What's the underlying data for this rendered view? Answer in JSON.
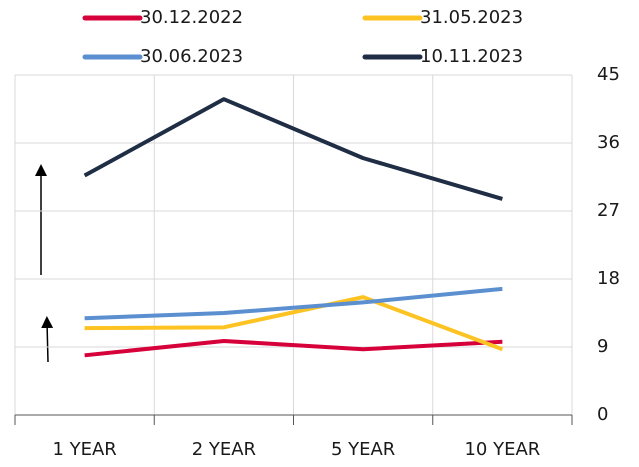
{
  "chart_data": {
    "type": "line",
    "categories": [
      "1 YEAR",
      "2 YEAR",
      "5 YEAR",
      "10 YEAR"
    ],
    "series": [
      {
        "name": "30.12.2022",
        "color": "#d6003a",
        "values": [
          7.9,
          9.8,
          8.7,
          9.7
        ]
      },
      {
        "name": "31.05.2023",
        "color": "#fdc323",
        "values": [
          11.5,
          11.6,
          15.6,
          8.7
        ]
      },
      {
        "name": "30.06.2023",
        "color": "#5b8fd0",
        "values": [
          12.8,
          13.5,
          14.9,
          16.7
        ]
      },
      {
        "name": "10.11.2023",
        "color": "#1f2d45",
        "values": [
          31.7,
          41.8,
          34.0,
          28.6
        ]
      }
    ],
    "ylim": [
      0,
      45
    ],
    "yticks": [
      0,
      9,
      18,
      27,
      36,
      45
    ],
    "grid": true,
    "legend": "top"
  }
}
